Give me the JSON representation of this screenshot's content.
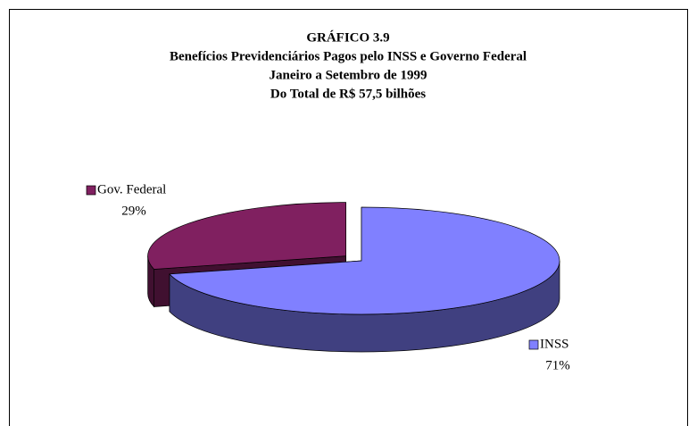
{
  "chart_data": {
    "type": "pie",
    "title": "GRÁFICO 3.9",
    "subtitle": [
      "Benefícios Previdenciários Pagos pelo INSS e Governo Federal",
      "Janeiro a Setembro de 1999",
      "Do Total de R$ 57,5 bilhões"
    ],
    "categories": [
      "INSS",
      "Gov. Federal"
    ],
    "values": [
      71,
      29
    ],
    "value_labels": [
      "71%",
      "29%"
    ],
    "colors": [
      "#8080ff",
      "#802060"
    ]
  }
}
